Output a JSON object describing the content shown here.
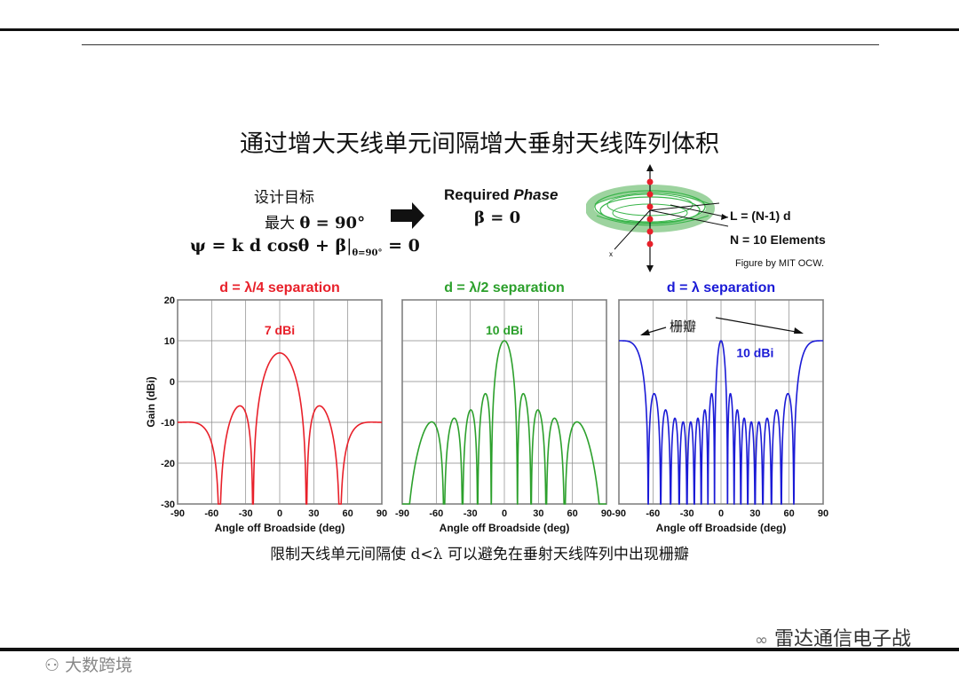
{
  "slide": {
    "title": "通过增大天线单元间隔增大垂射天线阵列体积",
    "design_goal_label": "设计目标",
    "max_label": "最大",
    "max_condition": "θ = 90°",
    "phase_equation": "ψ = k d cosθ + β",
    "phase_equation_eval": "θ=90°",
    "phase_equation_rhs": "= 0",
    "required_phase_label_1": "Required",
    "required_phase_label_2": "Phase",
    "beta_value": "β = 0",
    "array_length_label": "L = (N-1) d",
    "elements_label": "N = 10 Elements",
    "figure_credit": "Figure by MIT OCW.",
    "grating_lobe_label": "栅瓣",
    "caption": "限制天线单元间隔使 d<λ 可以避免在垂射天线阵列中出现栅瓣"
  },
  "watermarks": {
    "channel": "雷达通信电子战",
    "source": "大数跨境"
  },
  "colors": {
    "quarter": "#e8202a",
    "half": "#2ca02c",
    "full": "#1a1ad6"
  },
  "chart_data": [
    {
      "type": "line",
      "title": "d = λ/4 separation",
      "xlabel": "Angle off Broadside (deg)",
      "ylabel": "Gain (dBi)",
      "xlim": [
        -90,
        90
      ],
      "ylim": [
        -30,
        20
      ],
      "xticks": [
        "-90",
        "-60",
        "-30",
        "0",
        "30",
        "60",
        "90"
      ],
      "yticks": [
        "20",
        "10",
        "0",
        "-10",
        "-20",
        "-30"
      ],
      "grid": true,
      "annotation": "7 dBi",
      "peak_gain_dbi": 7,
      "element_spacing_wavelengths": 0.25,
      "elements": 10
    },
    {
      "type": "line",
      "title": "d = λ/2 separation",
      "xlabel": "Angle off Broadside (deg)",
      "ylabel": "",
      "xlim": [
        -90,
        90
      ],
      "ylim": [
        -30,
        20
      ],
      "xticks": [
        "-90",
        "-60",
        "-30",
        "0",
        "30",
        "60",
        "90"
      ],
      "yticks": [],
      "grid": true,
      "annotation": "10 dBi",
      "peak_gain_dbi": 10,
      "element_spacing_wavelengths": 0.5,
      "elements": 10
    },
    {
      "type": "line",
      "title": "d = λ separation",
      "xlabel": "Angle off Broadside (deg)",
      "ylabel": "",
      "xlim": [
        -90,
        90
      ],
      "ylim": [
        -30,
        20
      ],
      "xticks": [
        "-90",
        "-60",
        "-30",
        "0",
        "30",
        "60",
        "90"
      ],
      "yticks": [],
      "grid": true,
      "annotation": "10 dBi",
      "peak_gain_dbi": 10,
      "element_spacing_wavelengths": 1.0,
      "elements": 10
    }
  ]
}
